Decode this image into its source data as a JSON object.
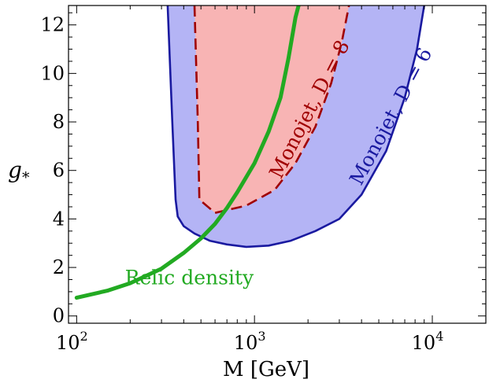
{
  "chart_data": {
    "type": "line",
    "xlabel": "M   [GeV]",
    "ylabel": "g",
    "ylabel_subscript": "*",
    "xscale": "log",
    "xlim": [
      90,
      20000
    ],
    "ylim": [
      -0.3,
      12.8
    ],
    "xticks": [
      {
        "value": 100,
        "base": "10",
        "exp": "2"
      },
      {
        "value": 1000,
        "base": "10",
        "exp": "3"
      },
      {
        "value": 10000,
        "base": "10",
        "exp": "4"
      }
    ],
    "yticks": [
      {
        "value": 0,
        "label": "0"
      },
      {
        "value": 2,
        "label": "2"
      },
      {
        "value": 4,
        "label": "4"
      },
      {
        "value": 6,
        "label": "6"
      },
      {
        "value": 8,
        "label": "8"
      },
      {
        "value": 10,
        "label": "10"
      },
      {
        "value": 12,
        "label": "12"
      }
    ],
    "series": [
      {
        "name": "Monojet, D = 6",
        "kind": "region",
        "fill": "#b4b4f5",
        "stroke": "#1a1aa0",
        "points": [
          [
            325,
            12.8
          ],
          [
            345,
            8
          ],
          [
            360,
            4.8
          ],
          [
            370,
            4.1
          ],
          [
            400,
            3.7
          ],
          [
            460,
            3.4
          ],
          [
            560,
            3.1
          ],
          [
            700,
            2.95
          ],
          [
            900,
            2.85
          ],
          [
            1200,
            2.9
          ],
          [
            1600,
            3.1
          ],
          [
            2200,
            3.5
          ],
          [
            3000,
            4.0
          ],
          [
            4000,
            5.0
          ],
          [
            5500,
            6.8
          ],
          [
            7000,
            9.0
          ],
          [
            8200,
            11.0
          ],
          [
            9000,
            12.8
          ]
        ]
      },
      {
        "name": "Monojet, D = 8",
        "kind": "region",
        "fill": "#f8b4b4",
        "stroke": "#a00000",
        "dashed": true,
        "points": [
          [
            460,
            12.8
          ],
          [
            480,
            8
          ],
          [
            490,
            4.8
          ],
          [
            600,
            4.25
          ],
          [
            900,
            4.55
          ],
          [
            1300,
            5.2
          ],
          [
            1700,
            6.3
          ],
          [
            2200,
            7.8
          ],
          [
            2700,
            9.6
          ],
          [
            3100,
            11.3
          ],
          [
            3400,
            12.8
          ]
        ]
      },
      {
        "name": "Relic density",
        "kind": "line",
        "stroke": "#22aa22",
        "points": [
          [
            100,
            0.75
          ],
          [
            150,
            1.05
          ],
          [
            200,
            1.35
          ],
          [
            300,
            1.95
          ],
          [
            400,
            2.6
          ],
          [
            500,
            3.2
          ],
          [
            600,
            3.8
          ],
          [
            700,
            4.45
          ],
          [
            800,
            5.1
          ],
          [
            1000,
            6.3
          ],
          [
            1200,
            7.6
          ],
          [
            1400,
            9.0
          ],
          [
            1550,
            10.6
          ],
          [
            1700,
            12.3
          ],
          [
            1800,
            13.0
          ]
        ]
      }
    ],
    "annotations": [
      {
        "text": "Relic density",
        "x": 430,
        "y": 1.3,
        "color": "#22aa22",
        "rotate": 0
      },
      {
        "text": "Monojet, D = 8",
        "x": 2200,
        "y": 8.4,
        "color": "#a00000",
        "rotate": -63
      },
      {
        "text": "Monojet, D = 6",
        "x": 6300,
        "y": 8.1,
        "color": "#1a1aa0",
        "rotate": -62
      }
    ]
  }
}
